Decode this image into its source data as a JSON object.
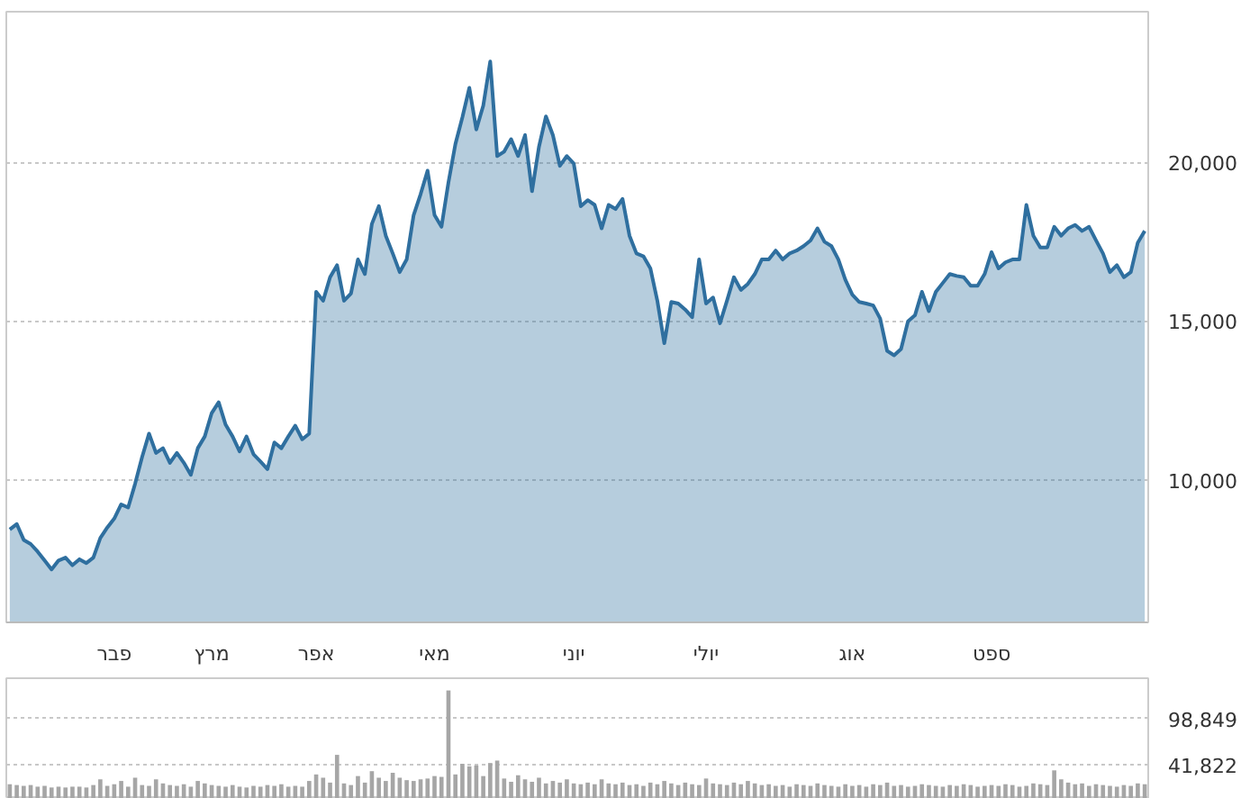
{
  "chart_data": [
    {
      "type": "area",
      "ylim": [
        5500,
        24750
      ],
      "categories": [
        null,
        null,
        null,
        null,
        null,
        null,
        null,
        null,
        null,
        null,
        null,
        null,
        null,
        null,
        null,
        "פבר",
        null,
        null,
        null,
        null,
        null,
        null,
        null,
        null,
        null,
        null,
        null,
        null,
        null,
        "מרץ",
        null,
        null,
        null,
        null,
        null,
        null,
        null,
        null,
        null,
        null,
        null,
        null,
        null,
        null,
        "אפר",
        null,
        null,
        null,
        null,
        null,
        null,
        null,
        null,
        null,
        null,
        null,
        null,
        null,
        null,
        null,
        null,
        "מאי",
        null,
        null,
        null,
        null,
        null,
        null,
        null,
        null,
        null,
        null,
        null,
        null,
        null,
        null,
        null,
        null,
        null,
        null,
        null,
        "יוני",
        null,
        null,
        null,
        null,
        null,
        null,
        null,
        null,
        null,
        null,
        null,
        null,
        null,
        null,
        null,
        null,
        null,
        null,
        "יולי",
        null,
        null,
        null,
        null,
        null,
        null,
        null,
        null,
        null,
        null,
        null,
        null,
        null,
        null,
        null,
        null,
        null,
        null,
        null,
        null,
        "אוג",
        null,
        null,
        null,
        null,
        null,
        null,
        null,
        null,
        null,
        null,
        null,
        null,
        null,
        null,
        null,
        null,
        null,
        null,
        null,
        "ספט",
        null,
        null,
        null,
        null,
        null,
        null,
        null,
        null,
        null,
        null,
        null,
        null,
        null,
        null,
        null,
        null,
        null,
        null,
        null,
        null,
        null,
        null
      ],
      "yticks": [
        {
          "value": 10000,
          "label": "10,000"
        },
        {
          "value": 15000,
          "label": "15,000"
        },
        {
          "value": 20000,
          "label": "20,000"
        }
      ],
      "grid": "y",
      "series": [
        {
          "color": "#2f6f9f",
          "values": [
            8430,
            8600,
            8100,
            7970,
            7730,
            7450,
            7170,
            7450,
            7540,
            7300,
            7490,
            7370,
            7540,
            8160,
            8490,
            8770,
            9220,
            9120,
            9870,
            10710,
            11450,
            10840,
            10990,
            10530,
            10840,
            10530,
            10150,
            10990,
            11360,
            12100,
            12440,
            11730,
            11360,
            10890,
            11360,
            10800,
            10570,
            10330,
            11170,
            10990,
            11360,
            11700,
            11270,
            11450,
            15920,
            15640,
            16380,
            16760,
            15640,
            15870,
            16940,
            16480,
            18060,
            18620,
            17690,
            17130,
            16540,
            16940,
            18340,
            19000,
            19740,
            18340,
            17970,
            19370,
            20580,
            21420,
            22350,
            21040,
            21790,
            23180,
            20200,
            20340,
            20730,
            20200,
            20860,
            19090,
            20490,
            21450,
            20860,
            19890,
            20200,
            19960,
            18620,
            18810,
            18660,
            17920,
            18660,
            18530,
            18850,
            17690,
            17130,
            17040,
            16660,
            15640,
            14300,
            15600,
            15550,
            15360,
            15120,
            16940,
            15550,
            15740,
            14930,
            15640,
            16380,
            15980,
            16170,
            16480,
            16940,
            16940,
            17220,
            16940,
            17130,
            17220,
            17360,
            17540,
            17920,
            17500,
            17360,
            16940,
            16300,
            15830,
            15600,
            15550,
            15490,
            15080,
            14060,
            13920,
            14120,
            14990,
            15180,
            15920,
            15310,
            15920,
            16200,
            16480,
            16420,
            16380,
            16110,
            16110,
            16480,
            17170,
            16660,
            16850,
            16940,
            16940,
            18660,
            17690,
            17320,
            17320,
            17970,
            17690,
            17920,
            18030,
            17840,
            17970,
            17540,
            17130,
            16540,
            16760,
            16380,
            16540,
            17470,
            17840
          ]
        }
      ]
    },
    {
      "type": "bar",
      "ylim": [
        0,
        148000
      ],
      "categories": [
        null,
        null,
        null,
        null,
        null,
        null,
        null,
        null,
        null,
        null,
        null,
        null,
        null,
        null,
        null,
        null,
        null,
        null,
        null,
        null,
        null,
        null,
        null,
        null,
        null,
        null,
        null,
        null,
        null,
        null,
        null,
        null,
        null,
        null,
        null,
        null,
        null,
        null,
        null,
        null,
        null,
        null,
        null,
        null,
        null,
        null,
        null,
        null,
        null,
        null,
        null,
        null,
        null,
        null,
        null,
        null,
        null,
        null,
        null,
        null,
        null,
        null,
        null,
        null,
        null,
        null,
        null,
        null,
        null,
        null,
        null,
        null,
        null,
        null,
        null,
        null,
        null,
        null,
        null,
        null,
        null,
        null,
        null,
        null,
        null,
        null,
        null,
        null,
        null,
        null,
        null,
        null,
        null,
        null,
        null,
        null,
        null,
        null,
        null,
        null,
        null,
        null,
        null,
        null,
        null,
        null,
        null,
        null,
        null,
        null,
        null,
        null,
        null,
        null,
        null,
        null,
        null,
        null,
        null,
        null,
        null,
        null,
        null,
        null,
        null,
        null,
        null,
        null,
        null,
        null,
        null,
        null,
        null,
        null,
        null,
        null,
        null,
        null,
        null,
        null,
        null,
        null,
        null,
        null,
        null,
        null,
        null,
        null,
        null,
        null,
        null,
        null,
        null,
        null,
        null,
        null,
        null,
        null,
        null,
        null,
        null,
        null,
        null,
        null
      ],
      "yticks": [
        {
          "value": 41822,
          "label": "41,822"
        },
        {
          "value": 98849,
          "label": "98,849"
        }
      ],
      "grid": "y",
      "series": [
        {
          "color": "#a6a6a6",
          "values": [
            18000,
            17000,
            16000,
            17000,
            15000,
            16000,
            14000,
            15000,
            14000,
            15000,
            15000,
            14000,
            17000,
            24000,
            16000,
            18000,
            22000,
            15000,
            26000,
            17000,
            16000,
            24000,
            19000,
            17000,
            16000,
            18000,
            15000,
            22000,
            19000,
            17000,
            16000,
            15000,
            17000,
            15000,
            14000,
            16000,
            15000,
            17000,
            16000,
            18000,
            15000,
            16000,
            15000,
            22000,
            30000,
            26000,
            20000,
            54000,
            19000,
            17000,
            28000,
            20000,
            34000,
            26000,
            22000,
            32000,
            26000,
            23000,
            22000,
            24000,
            25000,
            28000,
            27000,
            133000,
            30000,
            43000,
            40000,
            41000,
            28000,
            44000,
            47000,
            25000,
            21000,
            29000,
            24000,
            21000,
            26000,
            19000,
            22000,
            20000,
            24000,
            19000,
            18000,
            20000,
            18000,
            24000,
            19000,
            18000,
            20000,
            17000,
            18000,
            16000,
            20000,
            18000,
            22000,
            19000,
            17000,
            20000,
            18000,
            17000,
            25000,
            19000,
            18000,
            17000,
            20000,
            18000,
            22000,
            19000,
            17000,
            18000,
            16000,
            17000,
            15000,
            18000,
            17000,
            16000,
            19000,
            17000,
            16000,
            15000,
            18000,
            16000,
            17000,
            15000,
            18000,
            17000,
            20000,
            16000,
            17000,
            15000,
            16000,
            18000,
            17000,
            16000,
            15000,
            17000,
            16000,
            18000,
            17000,
            15000,
            16000,
            17000,
            16000,
            18000,
            17000,
            15000,
            16000,
            19000,
            18000,
            17000,
            35000,
            24000,
            20000,
            18000,
            19000,
            16000,
            18000,
            17000,
            16000,
            15000,
            17000,
            16000,
            19000,
            18000
          ]
        }
      ]
    }
  ]
}
